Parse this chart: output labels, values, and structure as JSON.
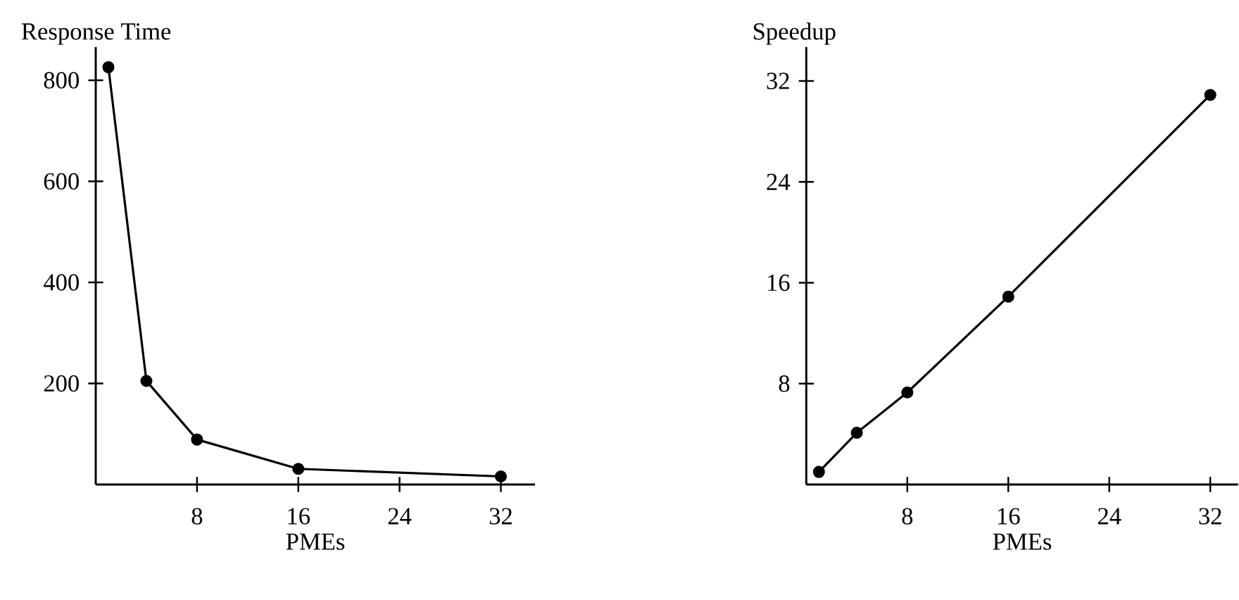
{
  "chart_data": [
    {
      "type": "line",
      "ylabel": "Response Time",
      "xlabel": "PMEs",
      "x": [
        1,
        4,
        8,
        16,
        32
      ],
      "values": [
        826,
        205,
        89,
        31,
        16
      ],
      "color": "#000000",
      "marker": "circle",
      "xlim": [
        0,
        34.7
      ],
      "ylim": [
        0,
        866
      ],
      "xticks": [
        8,
        16,
        24,
        32
      ],
      "yticks": [
        200,
        400,
        600,
        800
      ]
    },
    {
      "type": "line",
      "ylabel": "Speedup",
      "xlabel": "PMEs",
      "x": [
        1,
        4,
        8,
        16,
        32
      ],
      "values": [
        1,
        4.1,
        7.3,
        14.9,
        30.9
      ],
      "color": "#000000",
      "marker": "circle",
      "xlim": [
        0,
        34.2
      ],
      "ylim": [
        0,
        34.7
      ],
      "xticks": [
        8,
        16,
        24,
        32
      ],
      "yticks": [
        8,
        16,
        24,
        32
      ]
    }
  ]
}
